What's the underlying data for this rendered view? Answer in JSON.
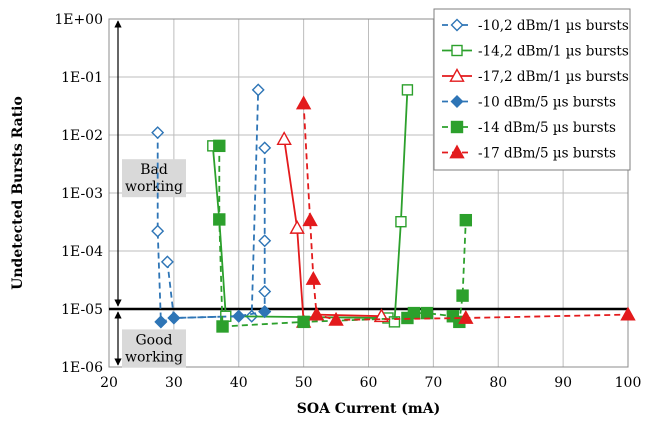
{
  "chart_data": {
    "type": "scatter",
    "title": "",
    "xlabel": "SOA Current (mA)",
    "ylabel": "Undetected Bursts Ratio",
    "xlim": [
      20,
      100
    ],
    "ylim": [
      1e-06,
      1
    ],
    "y_scale": "log",
    "grid": true,
    "legend_position": "top-right",
    "x_ticks": [
      20,
      30,
      40,
      50,
      60,
      70,
      80,
      90,
      100
    ],
    "x_tick_labels": [
      "20",
      "30",
      "40",
      "50",
      "60",
      "70",
      "80",
      "90",
      "100"
    ],
    "y_ticks": [
      1e-06,
      1e-05,
      0.0001,
      0.001,
      0.01,
      0.1,
      1
    ],
    "y_tick_labels": [
      "1E-06",
      "1E-05",
      "1E-04",
      "1E-03",
      "1E-02",
      "1E-01",
      "1E+00"
    ],
    "threshold": {
      "y": 1e-05
    },
    "annotations": {
      "bad": [
        "Bad",
        "working"
      ],
      "good": [
        "Good",
        "working"
      ]
    },
    "series": [
      {
        "name": "-10,2 dBm/1 µs bursts",
        "color": "#2e75b6",
        "marker": "diamond-open",
        "dash": true,
        "segments": [
          [
            [
              27.5,
              0.011
            ],
            [
              27.5,
              0.00022
            ],
            [
              28,
              6e-06
            ]
          ],
          [
            [
              29,
              6.5e-05
            ],
            [
              30,
              7e-06
            ],
            [
              40,
              7.5e-06
            ],
            [
              42,
              7.5e-06
            ],
            [
              43,
              0.06
            ]
          ],
          [
            [
              44,
              0.006
            ],
            [
              44,
              0.00015
            ],
            [
              44,
              2e-05
            ],
            [
              44,
              9e-06
            ]
          ]
        ]
      },
      {
        "name": "-14,2 dBm/1 µs bursts",
        "color": "#2ca02c",
        "marker": "square-open",
        "dash": false,
        "segments": [
          [
            [
              36,
              0.0065
            ],
            [
              37,
              0.00035
            ],
            [
              38,
              7.5e-06
            ],
            [
              63,
              7e-06
            ],
            [
              64,
              6e-06
            ],
            [
              65,
              0.00032
            ],
            [
              66,
              0.06
            ]
          ]
        ]
      },
      {
        "name": "-17,2 dBm/1 µs bursts",
        "color": "#e31a1c",
        "marker": "triangle-open",
        "dash": false,
        "segments": [
          [
            [
              47,
              0.0085
            ],
            [
              49,
              0.00025
            ],
            [
              50,
              6e-06
            ],
            [
              52,
              8e-06
            ],
            [
              62,
              7.5e-06
            ]
          ]
        ]
      },
      {
        "name": "-10 dBm/5 µs bursts",
        "color": "#2e75b6",
        "marker": "diamond-filled",
        "dash": true,
        "segments": [
          [
            [
              28,
              6e-06
            ],
            [
              30,
              7e-06
            ],
            [
              40,
              7.5e-06
            ],
            [
              44,
              9e-06
            ]
          ]
        ]
      },
      {
        "name": "-14 dBm/5 µs bursts",
        "color": "#2ca02c",
        "marker": "square-filled",
        "dash": true,
        "segments": [
          [
            [
              37,
              0.0065
            ],
            [
              37,
              0.00035
            ],
            [
              37.5,
              5e-06
            ],
            [
              50,
              6e-06
            ],
            [
              66,
              7e-06
            ],
            [
              67,
              8.5e-06
            ],
            [
              69,
              8.5e-06
            ],
            [
              73,
              7.5e-06
            ],
            [
              74,
              6e-06
            ],
            [
              74.5,
              1.7e-05
            ],
            [
              75,
              0.00034
            ]
          ]
        ]
      },
      {
        "name": "-17 dBm/5 µs bursts",
        "color": "#e31a1c",
        "marker": "triangle-filled",
        "dash": true,
        "segments": [
          [
            [
              50,
              0.035
            ],
            [
              51,
              0.00034
            ],
            [
              51.5,
              3.3e-05
            ],
            [
              52,
              8e-06
            ],
            [
              55,
              6.5e-06
            ],
            [
              75,
              7e-06
            ],
            [
              100,
              8e-06
            ]
          ]
        ]
      }
    ]
  }
}
